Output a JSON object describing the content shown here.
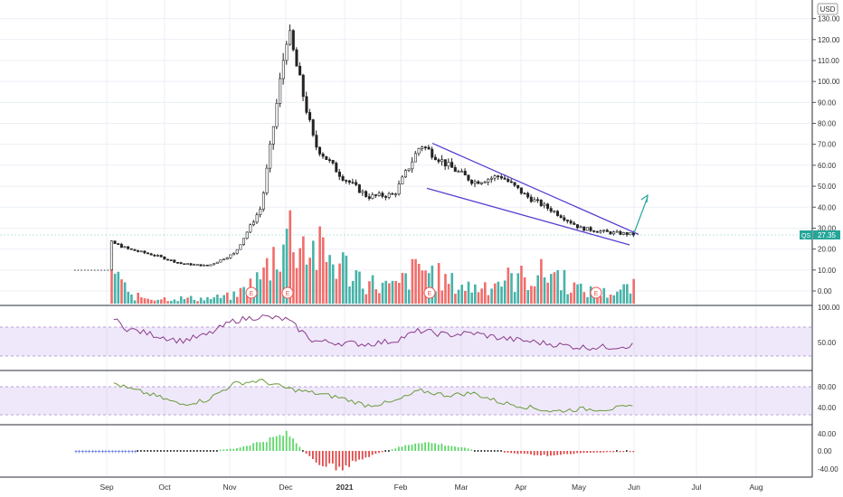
{
  "currency": "USD",
  "symbol_badge": "QS",
  "last_price": "27.35",
  "colors": {
    "up": "#26a69a",
    "down": "#ef5350",
    "vol_up": "#26a69a",
    "vol_down": "#ef5350",
    "wedge": "#5b3fd1",
    "arrow": "#26a69a",
    "rsi": "#8a3c8a",
    "stoch": "#6a9a3a",
    "band": "rgba(180,150,230,0.22)",
    "grid": "#eceff5"
  },
  "main_axis": {
    "ticks": [
      "130.00",
      "120.00",
      "110.00",
      "100.00",
      "90.00",
      "80.00",
      "70.00",
      "60.00",
      "50.00",
      "40.00",
      "30.00",
      "20.00",
      "10.00",
      "0.00"
    ]
  },
  "rsi_axis": {
    "ticks": [
      "100.00",
      "50.00"
    ]
  },
  "stoch_axis": {
    "ticks": [
      "80.00",
      "40.00"
    ]
  },
  "macd_axis": {
    "ticks": [
      "40.00",
      "0.00",
      "-40.00"
    ]
  },
  "x_axis": {
    "labels": [
      "Sep",
      "Oct",
      "Nov",
      "Dec",
      "2021",
      "Feb",
      "Mar",
      "Apr",
      "May",
      "Jun",
      "Jul",
      "Aug"
    ]
  },
  "events": [
    "E",
    "E",
    "E",
    "E"
  ],
  "chart_data": {
    "type": "line",
    "title": "",
    "x": [
      "Aug",
      "Sep",
      "Sep-mid",
      "Oct",
      "Oct-mid",
      "Nov",
      "Nov-mid",
      "Dec",
      "Dec-mid",
      "Dec-end",
      "2021",
      "Jan-mid",
      "Feb",
      "Feb-mid",
      "Feb-end",
      "Mar",
      "Mar-mid",
      "Apr",
      "Apr-mid",
      "May",
      "May-mid",
      "May-end"
    ],
    "series": [
      {
        "values": [
          9.9,
          25,
          20,
          17,
          13,
          12,
          18,
          40,
          125,
          70,
          55,
          45,
          46,
          70,
          60,
          52,
          55,
          45,
          38,
          30,
          28,
          27
        ]
      }
    ],
    "volume": [
      0,
      25,
      3,
      2,
      2,
      2,
      3,
      10,
      28,
      20,
      15,
      8,
      6,
      14,
      8,
      6,
      9,
      10,
      12,
      5,
      4,
      6
    ],
    "rsi": [
      null,
      95,
      65,
      55,
      45,
      55,
      78,
      85,
      80,
      45,
      42,
      40,
      45,
      62,
      55,
      58,
      50,
      45,
      40,
      35,
      35,
      38
    ],
    "stoch": [
      null,
      98,
      75,
      60,
      40,
      50,
      85,
      92,
      75,
      65,
      55,
      38,
      45,
      70,
      60,
      65,
      45,
      35,
      25,
      30,
      30,
      35
    ],
    "macd": [
      0,
      0,
      0,
      0,
      0,
      0,
      2,
      8,
      15,
      -10,
      -15,
      -5,
      2,
      8,
      5,
      1,
      -1,
      -3,
      -4,
      -2,
      -1,
      -1
    ],
    "ylim": [
      0,
      135
    ],
    "wedge_upper": [
      [
        70.5,
        "Feb-mid"
      ],
      [
        27,
        "May-end"
      ]
    ],
    "wedge_lower": [
      [
        49,
        "Feb-mid"
      ],
      [
        22,
        "May-end"
      ]
    ],
    "grid": true
  }
}
